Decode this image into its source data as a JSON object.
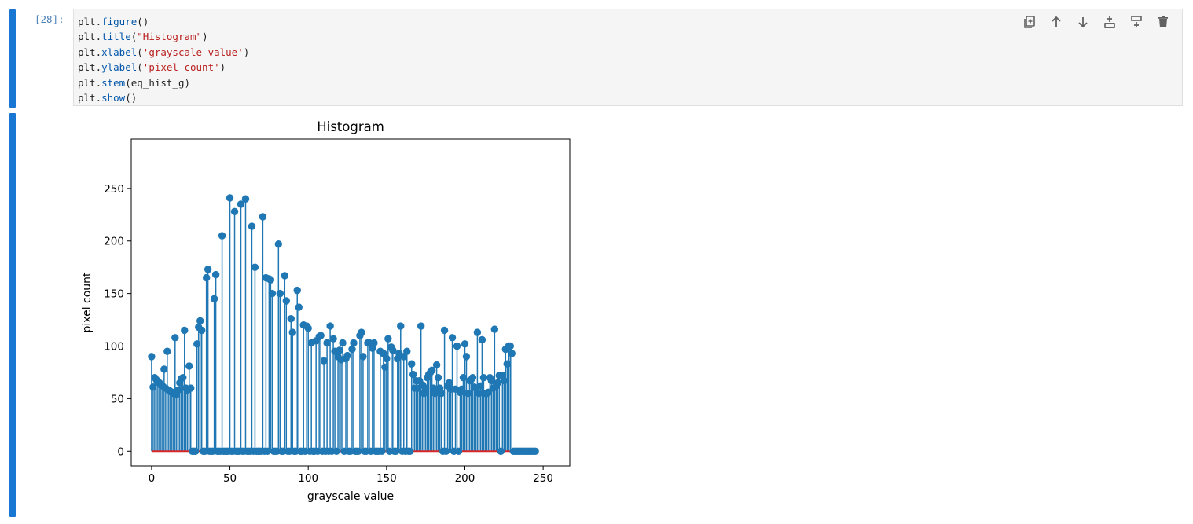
{
  "cell": {
    "prompt": "[28]:",
    "code_lines": [
      [
        "plt.",
        {
          "t": "figure",
          "c": "fn"
        },
        "()"
      ],
      [
        "plt.",
        {
          "t": "title",
          "c": "fn"
        },
        "(",
        {
          "t": "\"Histogram\"",
          "c": "str"
        },
        ")"
      ],
      [
        "plt.",
        {
          "t": "xlabel",
          "c": "fn"
        },
        "(",
        {
          "t": "'grayscale value'",
          "c": "str"
        },
        ")"
      ],
      [
        "plt.",
        {
          "t": "ylabel",
          "c": "fn"
        },
        "(",
        {
          "t": "'pixel count'",
          "c": "str"
        },
        ")"
      ],
      [
        "plt.",
        {
          "t": "stem",
          "c": "fn"
        },
        "(eq_hist_g)"
      ],
      [
        "plt.",
        {
          "t": "show",
          "c": "fn"
        },
        "()"
      ]
    ],
    "toolbar": [
      {
        "name": "duplicate-icon",
        "label": "Duplicate"
      },
      {
        "name": "move-up-icon",
        "label": "Move up"
      },
      {
        "name": "move-down-icon",
        "label": "Move down"
      },
      {
        "name": "insert-above-icon",
        "label": "Insert above"
      },
      {
        "name": "insert-below-icon",
        "label": "Insert below"
      },
      {
        "name": "delete-icon",
        "label": "Delete"
      }
    ]
  },
  "chart_data": {
    "type": "stem",
    "title": "Histogram",
    "xlabel": "grayscale value",
    "ylabel": "pixel count",
    "xlim": [
      -13,
      267
    ],
    "ylim": [
      -14,
      297
    ],
    "xticks": [
      0,
      50,
      100,
      150,
      200,
      250
    ],
    "yticks": [
      0,
      50,
      100,
      150,
      200,
      250
    ],
    "stem_color": "#1f77b4",
    "baseline_color": "#d62728",
    "values": [
      90,
      61,
      70,
      68,
      66,
      65,
      63,
      62,
      78,
      60,
      95,
      58,
      57,
      56,
      55,
      108,
      54,
      58,
      65,
      69,
      70,
      115,
      60,
      58,
      81,
      60,
      0,
      0,
      0,
      102,
      118,
      124,
      115,
      0,
      0,
      165,
      173,
      0,
      0,
      0,
      145,
      168,
      0,
      0,
      0,
      205,
      0,
      0,
      0,
      0,
      241,
      0,
      0,
      228,
      0,
      0,
      0,
      235,
      0,
      0,
      240,
      0,
      0,
      0,
      214,
      0,
      175,
      0,
      0,
      0,
      0,
      223,
      0,
      165,
      0,
      164,
      163,
      150,
      0,
      0,
      0,
      197,
      150,
      0,
      0,
      167,
      143,
      0,
      0,
      126,
      113,
      0,
      0,
      153,
      137,
      0,
      0,
      120,
      0,
      119,
      117,
      0,
      103,
      0,
      0,
      105,
      0,
      109,
      110,
      0,
      86,
      0,
      103,
      0,
      119,
      0,
      107,
      95,
      0,
      90,
      96,
      87,
      103,
      0,
      88,
      91,
      0,
      0,
      97,
      103,
      0,
      0,
      0,
      110,
      113,
      90,
      0,
      0,
      103,
      103,
      0,
      98,
      103,
      0,
      0,
      0,
      95,
      0,
      93,
      80,
      88,
      107,
      0,
      99,
      96,
      0,
      0,
      88,
      93,
      119,
      0,
      90,
      0,
      95,
      0,
      0,
      83,
      73,
      60,
      67,
      60,
      67,
      119,
      63,
      55,
      60,
      70,
      73,
      75,
      77,
      60,
      55,
      82,
      70,
      60,
      55,
      0,
      115,
      0,
      62,
      65,
      59,
      108,
      0,
      59,
      100,
      0,
      56,
      59,
      70,
      102,
      90,
      55,
      67,
      68,
      70,
      61,
      60,
      113,
      55,
      62,
      106,
      70,
      55,
      55,
      56,
      70,
      67,
      60,
      116,
      62,
      65,
      72,
      0,
      72,
      67,
      97,
      83,
      100,
      100,
      93,
      0,
      0,
      0,
      0,
      0,
      0,
      0,
      0,
      0,
      0,
      0,
      0,
      0,
      0,
      0
    ]
  }
}
